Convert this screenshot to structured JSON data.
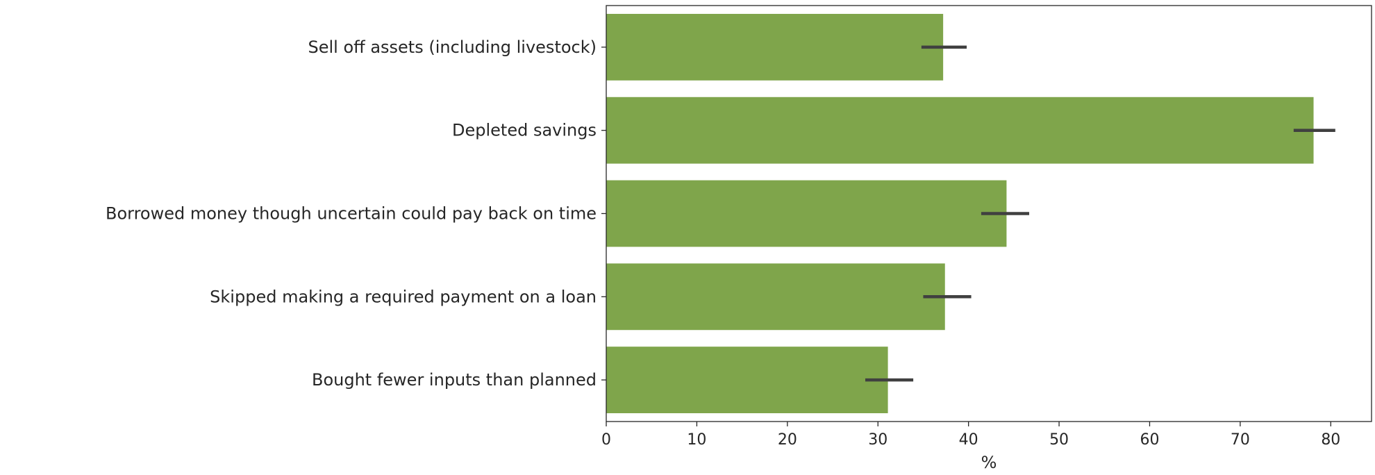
{
  "chart_data": {
    "type": "bar",
    "orientation": "horizontal",
    "title": "",
    "xlabel": "%",
    "ylabel": "",
    "xlim": [
      0,
      84.5
    ],
    "x_ticks": [
      0,
      10,
      20,
      30,
      40,
      50,
      60,
      70,
      80
    ],
    "categories": [
      "Sell off assets (including livestock)",
      "Depleted savings",
      "Borrowed money though uncertain could pay back on time",
      "Skipped making a required payment on a loan",
      "Bought fewer inputs than planned"
    ],
    "values": [
      37.2,
      78.1,
      44.2,
      37.4,
      31.1
    ],
    "error_low": [
      34.8,
      75.9,
      41.4,
      35.0,
      28.6
    ],
    "error_high": [
      39.8,
      80.5,
      46.7,
      40.3,
      33.9
    ],
    "grid": false,
    "legend": "none",
    "bar_color": "#7fa54b",
    "error_color": "#404040"
  }
}
